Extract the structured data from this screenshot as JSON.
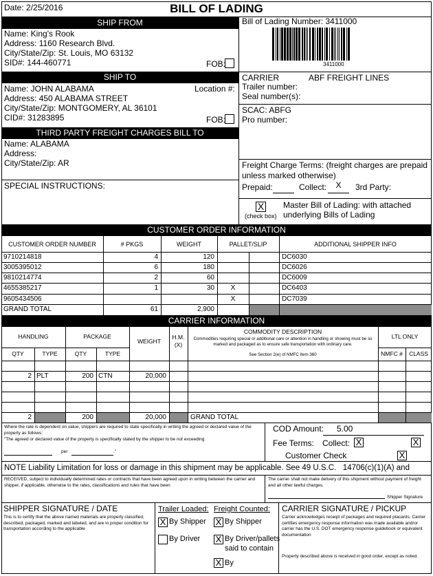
{
  "header": {
    "date": "Date: 2/25/2016",
    "title": "BILL OF LADING"
  },
  "ship_from": {
    "heading": "SHIP FROM",
    "name": "Name: King's Rook",
    "address": "Address: 1160 Research Blvd.",
    "city": "City/State/Zip: St. Louis, MO 63132",
    "sid": "SID#: 144-460771",
    "fob": "FOB:"
  },
  "ship_to": {
    "heading": "SHIP TO",
    "name": "Name: JOHN ALABAMA",
    "location": "Location #:",
    "address": "Address: 450 ALABAMA STREET",
    "city": "City/State/Zip: MONTGOMERY, AL 36101",
    "cid": "CID#: 31283895",
    "fob": "FOB:"
  },
  "third_party": {
    "heading": "THIRD PARTY FREIGHT CHARGES BILL TO",
    "name": "Name: ALABAMA",
    "address": "Address:",
    "city": "City/State/Zip: AR"
  },
  "special_instructions": "SPECIAL INSTRUCTIONS:",
  "bill_of_lading": {
    "number_label": "Bill of Lading Number: 3411000",
    "barcode_text": "3411000"
  },
  "carrier": {
    "label": "CARRIER",
    "name": "ABF FREIGHT LINES",
    "trailer": "Trailer number:",
    "seal": "Seal number(s):",
    "scac": "SCAC: ABFG",
    "pro": "Pro number:"
  },
  "freight_terms": {
    "line1": "Freight Charge Terms: (freight charges are prepaid",
    "line2": "unless marked otherwise)",
    "prepaid": "Prepaid:",
    "collect": "Collect:",
    "collect_mark": "X",
    "third_party": "3rd Party:"
  },
  "master_bol": {
    "mark": "X",
    "hint": "(check box)",
    "line1": "Master Bill of Lading: with attached",
    "line2": "underlying Bills of Lading"
  },
  "customer_orders": {
    "heading": "CUSTOMER ORDER INFORMATION",
    "columns": [
      "CUSTOMER ORDER NUMBER",
      "# PKGS",
      "WEIGHT",
      "PALLET/SLIP",
      "ADDITIONAL SHIPPER INFO"
    ],
    "rows": [
      {
        "order": "9710214818",
        "pkgs": 4,
        "weight": 120,
        "info": "DC6030"
      },
      {
        "order": "3005395012",
        "pkgs": 6,
        "weight": 180,
        "info": "DC6026"
      },
      {
        "order": "9810214774",
        "pkgs": 2,
        "weight": 60,
        "info": "DC6009"
      },
      {
        "order": "4655385217",
        "pkgs": 1,
        "weight": 30,
        "pallet": "X",
        "info": "DC6403"
      },
      {
        "order": "9605434506",
        "pallet": "X",
        "info": "DC7039"
      }
    ],
    "total": {
      "label": "GRAND TOTAL",
      "pkgs": 61,
      "weight": "2,900"
    }
  },
  "carrier_info": {
    "heading": "CARRIER INFORMATION",
    "handling": "HANDLING",
    "package": "PACKAGE",
    "qty": "QTY",
    "type": "TYPE",
    "weight": "WEIGHT",
    "hm": "H.M.",
    "hm_x": "(X)",
    "commodity": "COMMODITY DESCRIPTION",
    "commodity_note": "Commodities requiring special or additional care or attention in handling or showing must be so marked and packaged as to ensure safe transportation with ordinary care.",
    "nmfc_ref": "See Section 2(e) of NMFC Item 360",
    "ltl": "LTL ONLY",
    "nmfc": "NMFC #",
    "class": "CLASS",
    "rows": [
      {
        "handling_qty": 2,
        "handling_type": "PLT",
        "package_qty": 200,
        "package_type": "CTN",
        "weight": "20,000"
      }
    ],
    "total": {
      "handling_qty": 2,
      "package_qty": 200,
      "weight": "20,000",
      "label": "GRAND TOTAL"
    }
  },
  "declared_value": {
    "text": "Where the rate is dependent on value, shippers are required to state specifically in writing the agreed or declared value of the property as follows:",
    "line3": "\"The agreed or declared value of the property is specifically stated by the shipper to be not exceeding",
    "per": "per",
    "end": ".\""
  },
  "cod": {
    "label": "COD Amount:",
    "amount": "5.00",
    "fee_terms": "Fee Terms:",
    "collect": "Collect:",
    "collect_mark": "X",
    "second_mark": "X",
    "customer_check": "Customer Check",
    "customer_check_mark": "X"
  },
  "note": "NOTE Liability Limitation for loss or damage in this shipment may be applicable. See 49 U.S.C.   14706(c)(1)(A) and",
  "received": {
    "text": "RECEIVED, subject to individually determined rates or contracts that have been agreed upon in writing between the carrier and shipper, if applicable, otherwise to the rates, classifications and rules that have been",
    "carrier_note": "The carrier shall not make delivery of this shipment without payment of freight and all other lawful charges.",
    "shipper_signature": "Shipper Signature"
  },
  "shipper_signature": {
    "heading": "SHIPPER SIGNATURE / DATE",
    "text": "This is to certify that the above named materials are properly classified, described, packaged, marked and labeled, and are in proper condition for transportation according to the applicable"
  },
  "trailer_loaded": {
    "heading": "Trailer Loaded:",
    "by_shipper": "By Shipper",
    "by_shipper_mark": "X",
    "by_driver": "By Driver"
  },
  "freight_counted": {
    "heading": "Freight Counted:",
    "by_shipper": "By Shipper",
    "by_shipper_mark": "X",
    "by_driver": "By Driver/pallets",
    "by_driver_2": "said to contain",
    "by_driver_mark": "X",
    "by": "By",
    "by_mark": "X"
  },
  "carrier_signature": {
    "heading": "CARRIER SIGNATURE / PICKUP",
    "text": "Carrier acknowledges receipt of packages and required placards. Carrier certifies emergency response information was made available and/or carrier has the U.S. DOT emergency response guidebook or equivalent documentation",
    "received": "Property described above is received in good order, except as noted."
  }
}
